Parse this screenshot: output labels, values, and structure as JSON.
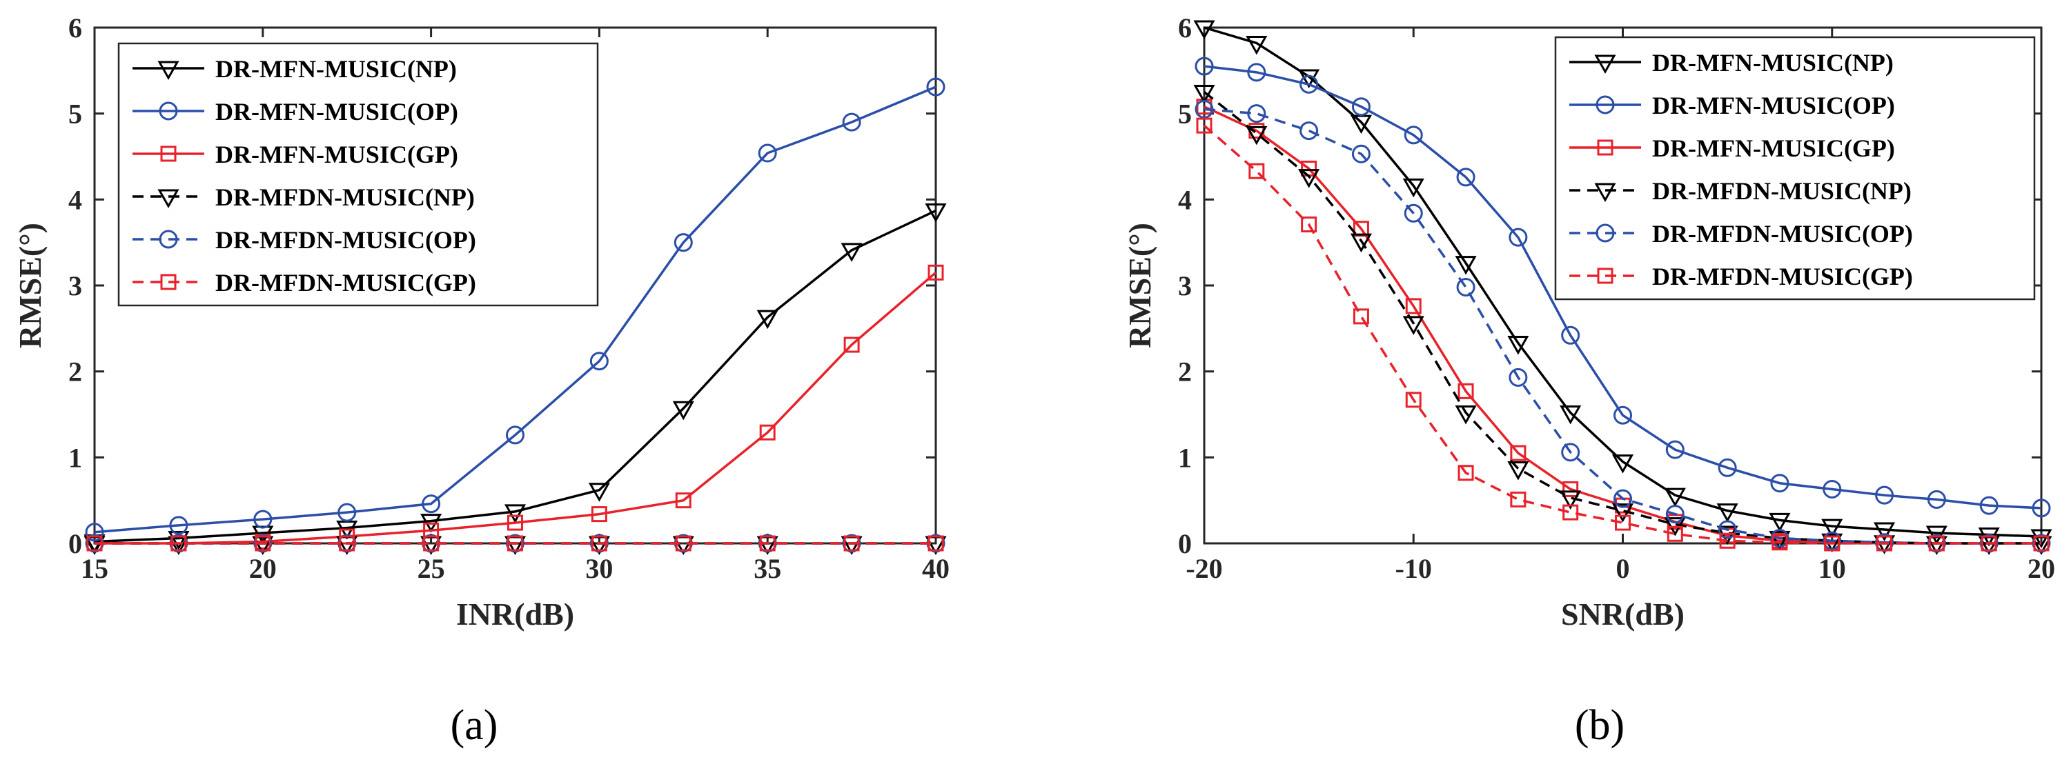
{
  "chart_data": [
    {
      "type": "line",
      "panel": "a",
      "caption": "(a)",
      "xlabel": "INR(dB)",
      "ylabel": "RMSE(°)",
      "xlim": [
        15,
        40
      ],
      "ylim": [
        0,
        6
      ],
      "xticks": [
        15,
        20,
        25,
        30,
        35,
        40
      ],
      "yticks": [
        0,
        1,
        2,
        3,
        4,
        5,
        6
      ],
      "grid": false,
      "legend_position": "top-left",
      "x": [
        15,
        17.5,
        20,
        22.5,
        25,
        27.5,
        30,
        32.5,
        35,
        37.5,
        40
      ],
      "series": [
        {
          "name": "DR-MFN-MUSIC(NP)",
          "color": "#000000",
          "dash": "solid",
          "marker": "triangle-down",
          "values": [
            0.02,
            0.06,
            0.12,
            0.18,
            0.26,
            0.37,
            0.62,
            1.57,
            2.63,
            3.41,
            3.87
          ]
        },
        {
          "name": "DR-MFN-MUSIC(OP)",
          "color": "#2b4ea8",
          "dash": "solid",
          "marker": "circle",
          "values": [
            0.13,
            0.21,
            0.28,
            0.36,
            0.46,
            1.26,
            2.12,
            3.5,
            4.54,
            4.9,
            5.31
          ]
        },
        {
          "name": "DR-MFN-MUSIC(GP)",
          "color": "#e8222a",
          "dash": "solid",
          "marker": "square",
          "values": [
            0.0,
            0.0,
            0.02,
            0.08,
            0.15,
            0.24,
            0.34,
            0.5,
            1.29,
            2.31,
            3.15
          ]
        },
        {
          "name": "DR-MFDN-MUSIC(NP)",
          "color": "#000000",
          "dash": "dashed",
          "marker": "triangle-down",
          "values": [
            0,
            0,
            0,
            0,
            0,
            0,
            0,
            0,
            0,
            0,
            0
          ]
        },
        {
          "name": "DR-MFDN-MUSIC(OP)",
          "color": "#2b4ea8",
          "dash": "dashed",
          "marker": "circle",
          "values": [
            0,
            0,
            0,
            0,
            0,
            0,
            0,
            0,
            0,
            0,
            0
          ]
        },
        {
          "name": "DR-MFDN-MUSIC(GP)",
          "color": "#e8222a",
          "dash": "dashed",
          "marker": "square",
          "values": [
            0,
            0,
            0,
            0,
            0,
            0,
            0,
            0,
            0,
            0,
            0
          ]
        }
      ]
    },
    {
      "type": "line",
      "panel": "b",
      "caption": "(b)",
      "xlabel": "SNR(dB)",
      "ylabel": "RMSE(°)",
      "xlim": [
        -20,
        20
      ],
      "ylim": [
        0,
        6
      ],
      "xticks": [
        -20,
        -10,
        0,
        10,
        20
      ],
      "yticks": [
        0,
        1,
        2,
        3,
        4,
        5,
        6
      ],
      "grid": false,
      "legend_position": "top-right",
      "x": [
        -20,
        -17.5,
        -15,
        -12.5,
        -10,
        -7.5,
        -5,
        -2.5,
        0,
        2.5,
        5,
        7.5,
        10,
        12.5,
        15,
        17.5,
        20
      ],
      "series": [
        {
          "name": "DR-MFN-MUSIC(NP)",
          "color": "#000000",
          "dash": "solid",
          "marker": "triangle-down",
          "values": [
            6.0,
            5.82,
            5.43,
            4.9,
            4.16,
            3.26,
            2.33,
            1.52,
            0.95,
            0.56,
            0.38,
            0.27,
            0.2,
            0.16,
            0.12,
            0.1,
            0.08
          ]
        },
        {
          "name": "DR-MFN-MUSIC(OP)",
          "color": "#2b4ea8",
          "dash": "solid",
          "marker": "circle",
          "values": [
            5.55,
            5.48,
            5.34,
            5.08,
            4.75,
            4.26,
            3.56,
            2.42,
            1.49,
            1.09,
            0.88,
            0.7,
            0.63,
            0.56,
            0.51,
            0.44,
            0.41
          ]
        },
        {
          "name": "DR-MFN-MUSIC(GP)",
          "color": "#e8222a",
          "dash": "solid",
          "marker": "square",
          "values": [
            5.08,
            4.8,
            4.36,
            3.66,
            2.76,
            1.77,
            1.05,
            0.63,
            0.44,
            0.25,
            0.09,
            0.03,
            0.01,
            0.0,
            0.0,
            0.0,
            0.0
          ]
        },
        {
          "name": "DR-MFDN-MUSIC(NP)",
          "color": "#000000",
          "dash": "dashed",
          "marker": "triangle-down",
          "values": [
            5.25,
            4.77,
            4.27,
            3.52,
            2.56,
            1.52,
            0.87,
            0.53,
            0.38,
            0.22,
            0.12,
            0.06,
            0.03,
            0.01,
            0.0,
            0.0,
            0.0
          ]
        },
        {
          "name": "DR-MFDN-MUSIC(OP)",
          "color": "#2b4ea8",
          "dash": "dashed",
          "marker": "circle",
          "values": [
            5.05,
            5.0,
            4.8,
            4.53,
            3.84,
            2.98,
            1.93,
            1.06,
            0.52,
            0.34,
            0.16,
            0.06,
            0.03,
            0.01,
            0.0,
            0.0,
            0.0
          ]
        },
        {
          "name": "DR-MFDN-MUSIC(GP)",
          "color": "#e8222a",
          "dash": "dashed",
          "marker": "square",
          "values": [
            4.86,
            4.33,
            3.71,
            2.64,
            1.67,
            0.82,
            0.51,
            0.36,
            0.24,
            0.11,
            0.03,
            0.01,
            0.0,
            0.0,
            0.0,
            0.0,
            0.0
          ]
        }
      ]
    }
  ]
}
